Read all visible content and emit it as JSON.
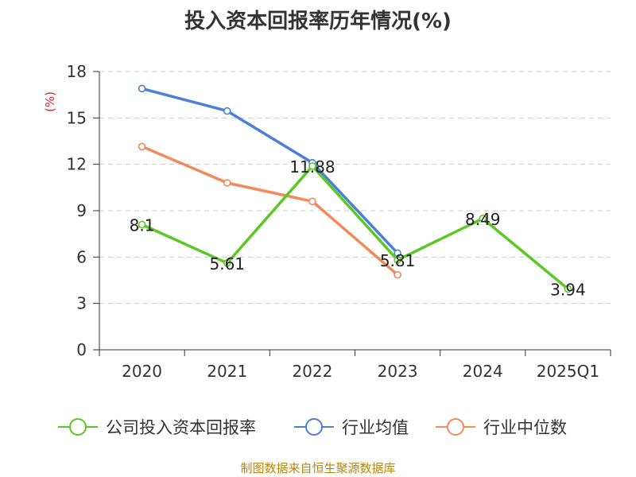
{
  "title": "投入资本回报率历年情况(%)",
  "source": "制图数据来自恒生聚源数据库",
  "chart_data": {
    "type": "line",
    "title": "投入资本回报率历年情况(%)",
    "ylabel": "(%)",
    "xlabel": "",
    "categories": [
      "2020",
      "2021",
      "2022",
      "2023",
      "2024",
      "2025Q1"
    ],
    "ylim": [
      0,
      18
    ],
    "yticks": [
      0,
      3,
      6,
      9,
      12,
      15,
      18
    ],
    "grid": true,
    "legend_position": "bottom",
    "series": [
      {
        "name": "公司投入资本回报率",
        "color": "#5cc825",
        "values": [
          8.1,
          5.61,
          11.88,
          5.81,
          8.49,
          3.94
        ],
        "labels": [
          "8.1",
          "5.61",
          "11.88",
          "5.81",
          "8.49",
          "3.94"
        ]
      },
      {
        "name": "行业均值",
        "color": "#4d7fd8",
        "values": [
          16.9,
          15.45,
          12.1,
          6.25,
          null,
          null
        ]
      },
      {
        "name": "行业中位数",
        "color": "#f28a5b",
        "values": [
          13.15,
          10.8,
          9.6,
          4.85,
          null,
          null
        ]
      }
    ]
  }
}
